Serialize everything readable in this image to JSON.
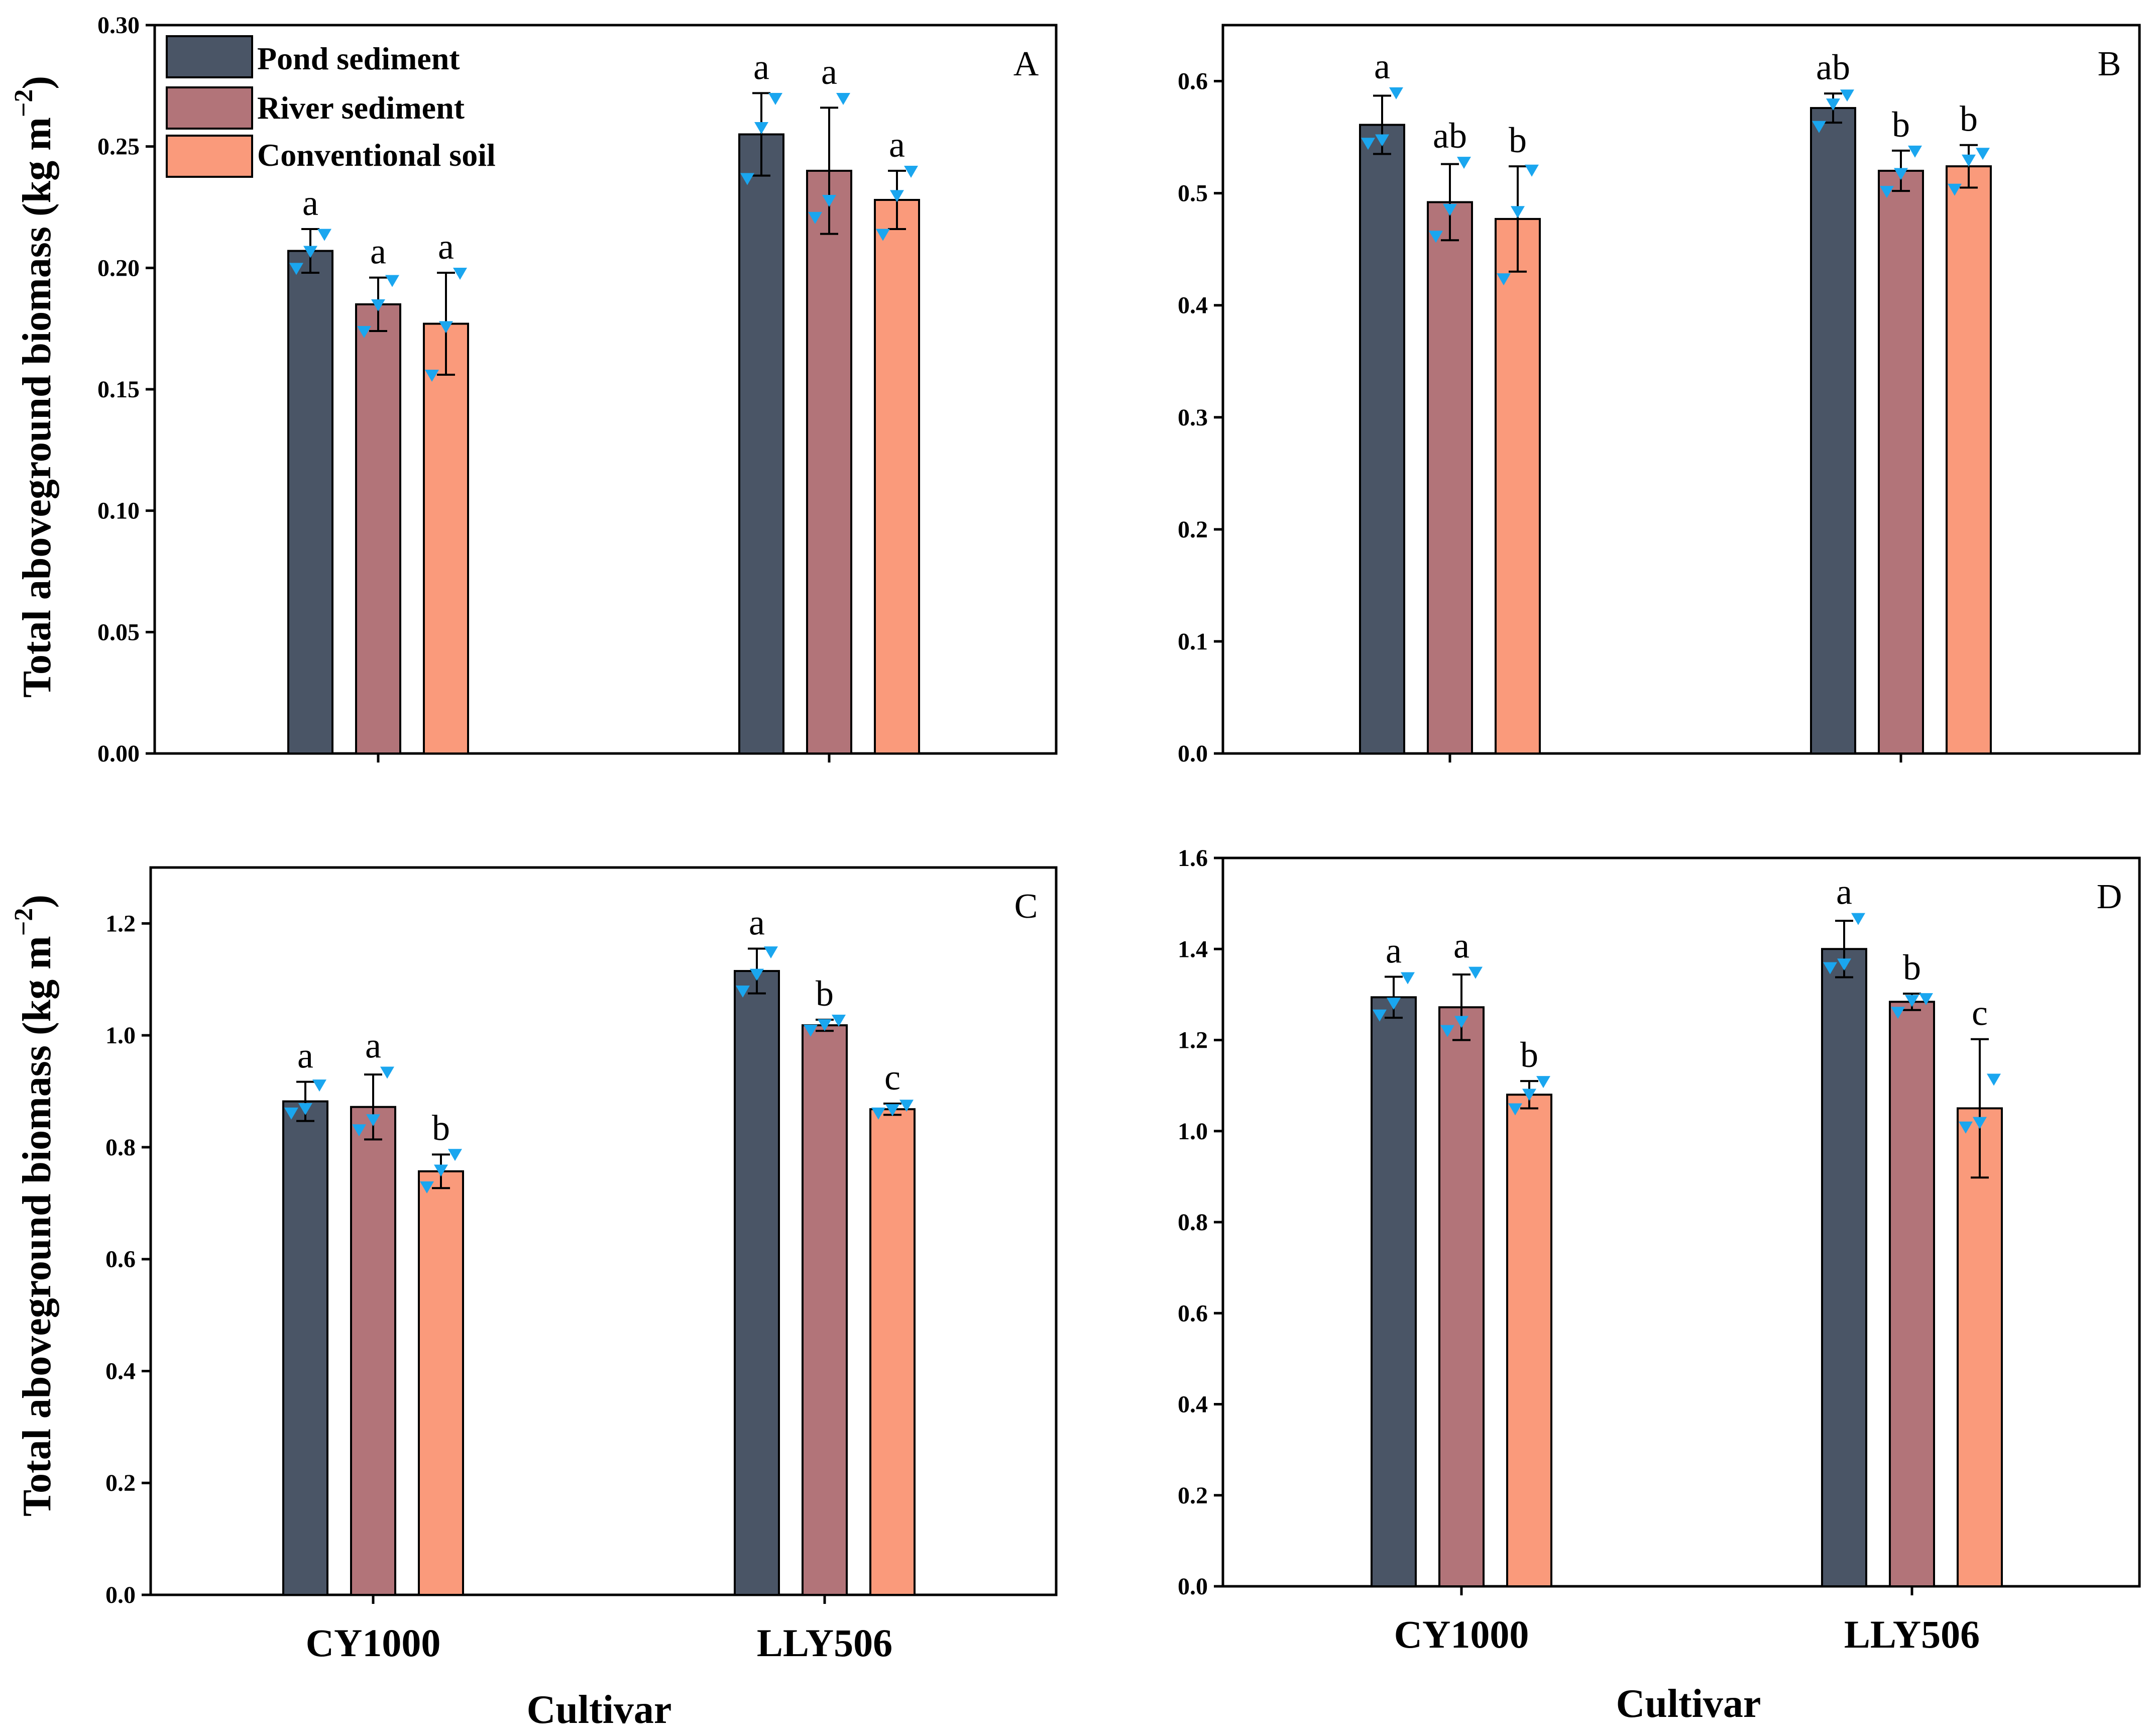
{
  "colors": {
    "pond": "#4a5566",
    "river": "#b27479",
    "conventional": "#fa9a7b",
    "point": "#1aa6ef",
    "axis": "#000000"
  },
  "legend": [
    "Pond sediment",
    "River sediment",
    "Conventional soil"
  ],
  "y_label_main": "Total aboveground biomass (kg m",
  "y_label_sup": "−2",
  "y_label_close": ")",
  "x_label": "Cultivar",
  "chart_data": [
    {
      "type": "bar",
      "panel": "A",
      "categories": [
        "CY1000",
        "LLY506"
      ],
      "show_xticks": false,
      "show_legend": true,
      "show_ylabel": true,
      "show_xlabel": false,
      "ylim": [
        0,
        0.3
      ],
      "yticks": [
        "0.00",
        "0.05",
        "0.10",
        "0.15",
        "0.20",
        "0.25",
        "0.30"
      ],
      "series": [
        {
          "name": "Pond sediment",
          "values": [
            0.207,
            0.255
          ],
          "err": [
            0.009,
            0.017
          ],
          "letters": [
            "a",
            "a"
          ],
          "points": [
            [
              0.2,
              0.207,
              0.214
            ],
            [
              0.237,
              0.258,
              0.27
            ]
          ]
        },
        {
          "name": "River sediment",
          "values": [
            0.185,
            0.24
          ],
          "err": [
            0.011,
            0.026
          ],
          "letters": [
            "a",
            "a"
          ],
          "points": [
            [
              0.174,
              0.185,
              0.195
            ],
            [
              0.221,
              0.228,
              0.27
            ]
          ]
        },
        {
          "name": "Conventional soil",
          "values": [
            0.177,
            0.228
          ],
          "err": [
            0.021,
            0.012
          ],
          "letters": [
            "a",
            "a"
          ],
          "points": [
            [
              0.156,
              0.176,
              0.198
            ],
            [
              0.214,
              0.23,
              0.24
            ]
          ]
        }
      ]
    },
    {
      "type": "bar",
      "panel": "B",
      "categories": [
        "CY1000",
        "LLY506"
      ],
      "show_xticks": false,
      "show_legend": false,
      "show_ylabel": false,
      "show_xlabel": false,
      "ylim": [
        0,
        0.65
      ],
      "yticks": [
        "0.0",
        "0.1",
        "0.2",
        "0.3",
        "0.4",
        "0.5",
        "0.6"
      ],
      "series": [
        {
          "name": "Pond sediment",
          "values": [
            0.561,
            0.576
          ],
          "err": [
            0.026,
            0.013
          ],
          "letters": [
            "a",
            "ab"
          ],
          "points": [
            [
              0.545,
              0.548,
              0.59
            ],
            [
              0.56,
              0.58,
              0.588
            ]
          ]
        },
        {
          "name": "River sediment",
          "values": [
            0.492,
            0.52
          ],
          "err": [
            0.034,
            0.018
          ],
          "letters": [
            "ab",
            "b"
          ],
          "points": [
            [
              0.462,
              0.486,
              0.528
            ],
            [
              0.502,
              0.518,
              0.538
            ]
          ]
        },
        {
          "name": "Conventional soil",
          "values": [
            0.477,
            0.524
          ],
          "err": [
            0.047,
            0.019
          ],
          "letters": [
            "b",
            "b"
          ],
          "points": [
            [
              0.424,
              0.484,
              0.521
            ],
            [
              0.504,
              0.53,
              0.536
            ]
          ]
        }
      ]
    },
    {
      "type": "bar",
      "panel": "C",
      "categories": [
        "CY1000",
        "LLY506"
      ],
      "show_xticks": true,
      "show_legend": false,
      "show_ylabel": true,
      "show_xlabel": true,
      "ylim": [
        0,
        1.3
      ],
      "yticks": [
        "0.0",
        "0.2",
        "0.4",
        "0.6",
        "0.8",
        "1.0",
        "1.2"
      ],
      "series": [
        {
          "name": "Pond sediment",
          "values": [
            0.882,
            1.115
          ],
          "err": [
            0.035,
            0.04
          ],
          "letters": [
            "a",
            "a"
          ],
          "points": [
            [
              0.862,
              0.87,
              0.912
            ],
            [
              1.08,
              1.11,
              1.15
            ]
          ]
        },
        {
          "name": "River sediment",
          "values": [
            0.872,
            1.018
          ],
          "err": [
            0.058,
            0.01
          ],
          "letters": [
            "a",
            "b"
          ],
          "points": [
            [
              0.832,
              0.85,
              0.935
            ],
            [
              1.01,
              1.02,
              1.028
            ]
          ]
        },
        {
          "name": "Conventional soil",
          "values": [
            0.757,
            0.868
          ],
          "err": [
            0.03,
            0.01
          ],
          "letters": [
            "b",
            "c"
          ],
          "points": [
            [
              0.73,
              0.76,
              0.788
            ],
            [
              0.862,
              0.868,
              0.876
            ]
          ]
        }
      ]
    },
    {
      "type": "bar",
      "panel": "D",
      "categories": [
        "CY1000",
        "LLY506"
      ],
      "show_xticks": true,
      "show_legend": false,
      "show_ylabel": false,
      "show_xlabel": true,
      "ylim": [
        0,
        1.6
      ],
      "yticks": [
        "0.0",
        "0.2",
        "0.4",
        "0.6",
        "0.8",
        "1.0",
        "1.2",
        "1.4",
        "1.6"
      ],
      "series": [
        {
          "name": "Pond sediment",
          "values": [
            1.294,
            1.4
          ],
          "err": [
            0.045,
            0.062
          ],
          "letters": [
            "a",
            "a"
          ],
          "points": [
            [
              1.256,
              1.282,
              1.338
            ],
            [
              1.36,
              1.368,
              1.468
            ]
          ]
        },
        {
          "name": "River sediment",
          "values": [
            1.272,
            1.284
          ],
          "err": [
            0.072,
            0.018
          ],
          "letters": [
            "a",
            "b"
          ],
          "points": [
            [
              1.222,
              1.242,
              1.35
            ],
            [
              1.262,
              1.288,
              1.292
            ]
          ]
        },
        {
          "name": "Conventional soil",
          "values": [
            1.08,
            1.05
          ],
          "err": [
            0.03,
            0.152
          ],
          "letters": [
            "b",
            "c"
          ],
          "points": [
            [
              1.05,
              1.082,
              1.11
            ],
            [
              1.01,
              1.02,
              1.115
            ]
          ]
        }
      ]
    }
  ]
}
